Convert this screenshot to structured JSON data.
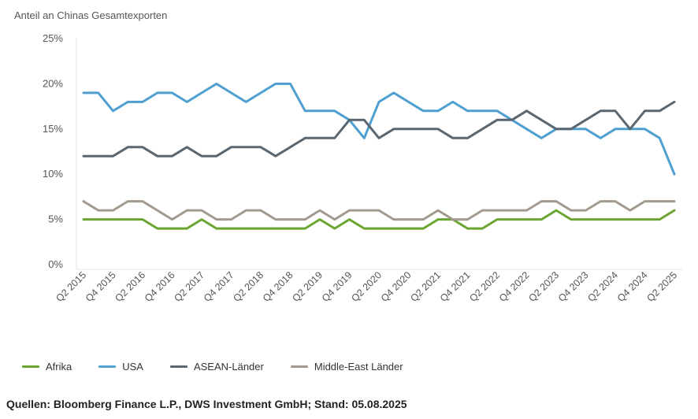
{
  "chart_data": {
    "type": "line",
    "ylabel": "Anteil an Chinas Gesamtexporten",
    "ylim": [
      0,
      25
    ],
    "yticks": [
      "0%",
      "5%",
      "10%",
      "15%",
      "20%",
      "25%"
    ],
    "ytick_values": [
      0,
      5,
      10,
      15,
      20,
      25
    ],
    "x": [
      "Q2 2015",
      "Q3 2015",
      "Q4 2015",
      "Q1 2016",
      "Q2 2016",
      "Q3 2016",
      "Q4 2016",
      "Q1 2017",
      "Q2 2017",
      "Q3 2017",
      "Q4 2017",
      "Q1 2018",
      "Q2 2018",
      "Q3 2018",
      "Q4 2018",
      "Q1 2019",
      "Q2 2019",
      "Q3 2019",
      "Q4 2019",
      "Q1 2020",
      "Q2 2020",
      "Q3 2020",
      "Q4 2020",
      "Q1 2021",
      "Q2 2021",
      "Q3 2021",
      "Q4 2021",
      "Q1 2022",
      "Q2 2022",
      "Q3 2022",
      "Q4 2022",
      "Q1 2023",
      "Q2 2023",
      "Q3 2023",
      "Q4 2023",
      "Q1 2024",
      "Q2 2024",
      "Q3 2024",
      "Q4 2024",
      "Q1 2025",
      "Q2 2025"
    ],
    "xtick_labels": [
      "Q2 2015",
      "Q4 2015",
      "Q2 2016",
      "Q4 2016",
      "Q2 2017",
      "Q4 2017",
      "Q2 2018",
      "Q4 2018",
      "Q2 2019",
      "Q4 2019",
      "Q2 2020",
      "Q4 2020",
      "Q2 2021",
      "Q4 2021",
      "Q2 2022",
      "Q4 2022",
      "Q2 2023",
      "Q4 2023",
      "Q2 2024",
      "Q4 2024",
      "Q2 2025"
    ],
    "grid": false,
    "legend_position": "bottom",
    "series": [
      {
        "name": "Afrika",
        "color": "#6aa532",
        "values": [
          5,
          5,
          5,
          5,
          5,
          4,
          4,
          4,
          5,
          4,
          4,
          4,
          4,
          4,
          4,
          4,
          5,
          4,
          5,
          4,
          4,
          4,
          4,
          4,
          5,
          5,
          4,
          4,
          5,
          5,
          5,
          5,
          6,
          5,
          5,
          5,
          5,
          5,
          5,
          5,
          6
        ]
      },
      {
        "name": "USA",
        "color": "#4f9fd0",
        "values": [
          19,
          19,
          17,
          18,
          18,
          19,
          19,
          18,
          19,
          20,
          19,
          18,
          19,
          20,
          20,
          17,
          17,
          17,
          16,
          14,
          18,
          19,
          18,
          17,
          17,
          18,
          17,
          17,
          17,
          16,
          15,
          14,
          15,
          15,
          15,
          14,
          15,
          15,
          15,
          14,
          10
        ]
      },
      {
        "name": "ASEAN-Länder",
        "color": "#5b6770",
        "values": [
          12,
          12,
          12,
          13,
          13,
          12,
          12,
          13,
          12,
          12,
          13,
          13,
          13,
          12,
          13,
          14,
          14,
          14,
          16,
          16,
          14,
          15,
          15,
          15,
          15,
          14,
          14,
          15,
          16,
          16,
          17,
          16,
          15,
          15,
          16,
          17,
          17,
          15,
          17,
          17,
          18
        ]
      },
      {
        "name": "Middle-East Länder",
        "color": "#a39a8f",
        "values": [
          7,
          6,
          6,
          7,
          7,
          6,
          5,
          6,
          6,
          5,
          5,
          6,
          6,
          5,
          5,
          5,
          6,
          5,
          6,
          6,
          6,
          5,
          5,
          5,
          6,
          5,
          5,
          6,
          6,
          6,
          6,
          7,
          7,
          6,
          6,
          7,
          7,
          6,
          7,
          7,
          7
        ]
      }
    ]
  },
  "legend": {
    "items": [
      {
        "label": "Afrika",
        "color": "#6aa532"
      },
      {
        "label": "USA",
        "color": "#4f9fd0"
      },
      {
        "label": "ASEAN-Länder",
        "color": "#5b6770"
      },
      {
        "label": "Middle-East Länder",
        "color": "#a39a8f"
      }
    ]
  },
  "footer": {
    "source": "Quellen: Bloomberg Finance L.P., DWS Investment GmbH; Stand: 05.08.2025"
  }
}
